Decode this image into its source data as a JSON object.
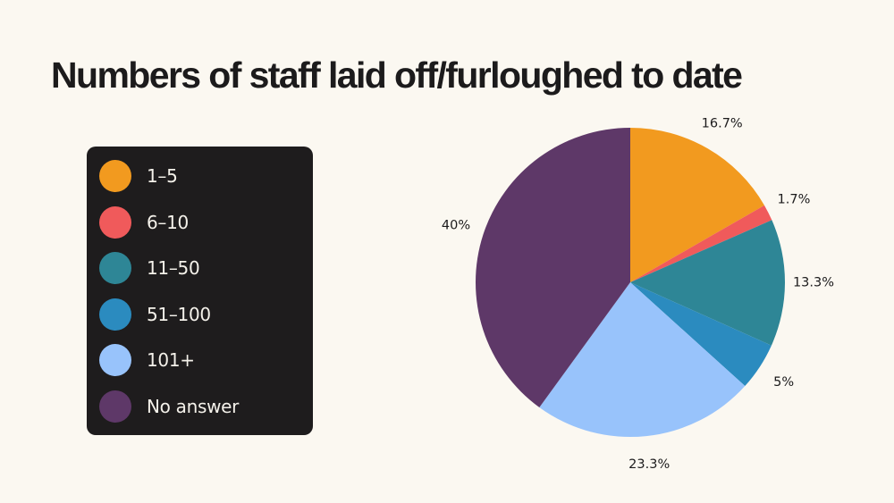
{
  "page": {
    "background": "#fbf8f1"
  },
  "chart_data": {
    "type": "pie",
    "title": "Numbers of staff laid off/furloughed to date",
    "categories": [
      "1–5",
      "6–10",
      "11–50",
      "51–100",
      "101+",
      "No answer"
    ],
    "values": [
      16.7,
      1.7,
      13.3,
      5,
      23.3,
      40
    ],
    "data_labels": [
      "16.7%",
      "1.7%",
      "13.3%",
      "5%",
      "23.3%",
      "40%"
    ],
    "colors": [
      "#f29a1f",
      "#f05a5b",
      "#2e8696",
      "#2b8bbf",
      "#98c3fb",
      "#5e3868"
    ],
    "start_angle_deg": 0,
    "direction": "clockwise",
    "legend_position": "left"
  }
}
